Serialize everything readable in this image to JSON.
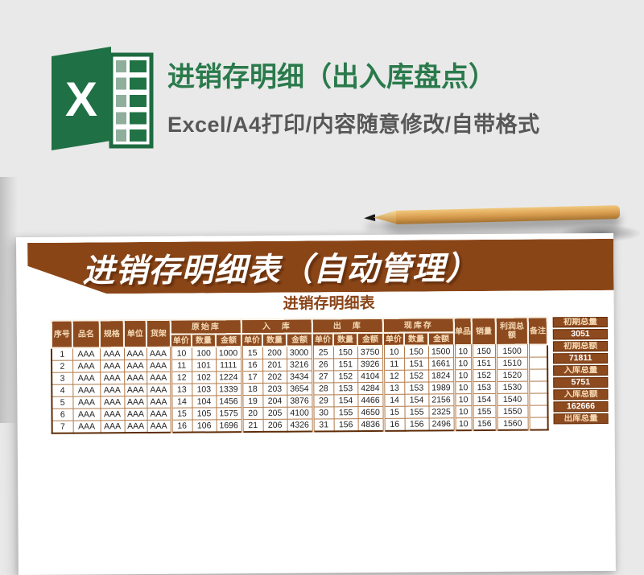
{
  "hero": {
    "excel_letter": "X",
    "title": "进销存明细（出入库盘点）",
    "subtitle": "Excel/A4打印/内容随意修改/自带格式"
  },
  "poster": {
    "banner_title": "进销存明细表（自动管理）",
    "sheet_title": "进销存明细表"
  },
  "inventory_table": {
    "simple_cols": [
      "序号",
      "品名",
      "规格",
      "单位",
      "货架"
    ],
    "groups": [
      "原始库",
      "入　库",
      "出　库",
      "现库存"
    ],
    "sub_cols": [
      "单价",
      "数量",
      "金额"
    ],
    "tail_cols": [
      "单品",
      "销量",
      "利润总额",
      "备注"
    ],
    "rows": [
      [
        "1",
        "AAA",
        "AAA",
        "AAA",
        "AAA",
        "10",
        "100",
        "1000",
        "15",
        "200",
        "3000",
        "25",
        "150",
        "3750",
        "10",
        "150",
        "1500",
        "10",
        "150",
        "1500",
        ""
      ],
      [
        "2",
        "AAA",
        "AAA",
        "AAA",
        "AAA",
        "11",
        "101",
        "1111",
        "16",
        "201",
        "3216",
        "26",
        "151",
        "3926",
        "11",
        "151",
        "1661",
        "10",
        "151",
        "1510",
        ""
      ],
      [
        "3",
        "AAA",
        "AAA",
        "AAA",
        "AAA",
        "12",
        "102",
        "1224",
        "17",
        "202",
        "3434",
        "27",
        "152",
        "4104",
        "12",
        "152",
        "1824",
        "10",
        "152",
        "1520",
        ""
      ],
      [
        "4",
        "AAA",
        "AAA",
        "AAA",
        "AAA",
        "13",
        "103",
        "1339",
        "18",
        "203",
        "3654",
        "28",
        "153",
        "4284",
        "13",
        "153",
        "1989",
        "10",
        "153",
        "1530",
        ""
      ],
      [
        "5",
        "AAA",
        "AAA",
        "AAA",
        "AAA",
        "14",
        "104",
        "1456",
        "19",
        "204",
        "3876",
        "29",
        "154",
        "4466",
        "14",
        "154",
        "2156",
        "10",
        "154",
        "1540",
        ""
      ],
      [
        "6",
        "AAA",
        "AAA",
        "AAA",
        "AAA",
        "15",
        "105",
        "1575",
        "20",
        "205",
        "4100",
        "30",
        "155",
        "4650",
        "15",
        "155",
        "2325",
        "10",
        "155",
        "1550",
        ""
      ],
      [
        "7",
        "AAA",
        "AAA",
        "AAA",
        "AAA",
        "16",
        "106",
        "1696",
        "21",
        "206",
        "4326",
        "31",
        "156",
        "4836",
        "16",
        "156",
        "2496",
        "10",
        "156",
        "1560",
        ""
      ]
    ]
  },
  "side_panel": {
    "cells": [
      "初期总量",
      "3051",
      "初期总额",
      "71811",
      "入库总量",
      "5751",
      "入库总额",
      "162666",
      "出库总量"
    ]
  },
  "colors": {
    "excel_green": "#217346",
    "title_green": "#2a7a4b",
    "subtitle_gray": "#575757",
    "brown": "#8a4517",
    "header_brown": "#8d4a1f",
    "table_border": "#b07a4b",
    "paper": "#ffffff",
    "background": "#e9e9e9",
    "pencil_wood": "#d8a95f"
  }
}
